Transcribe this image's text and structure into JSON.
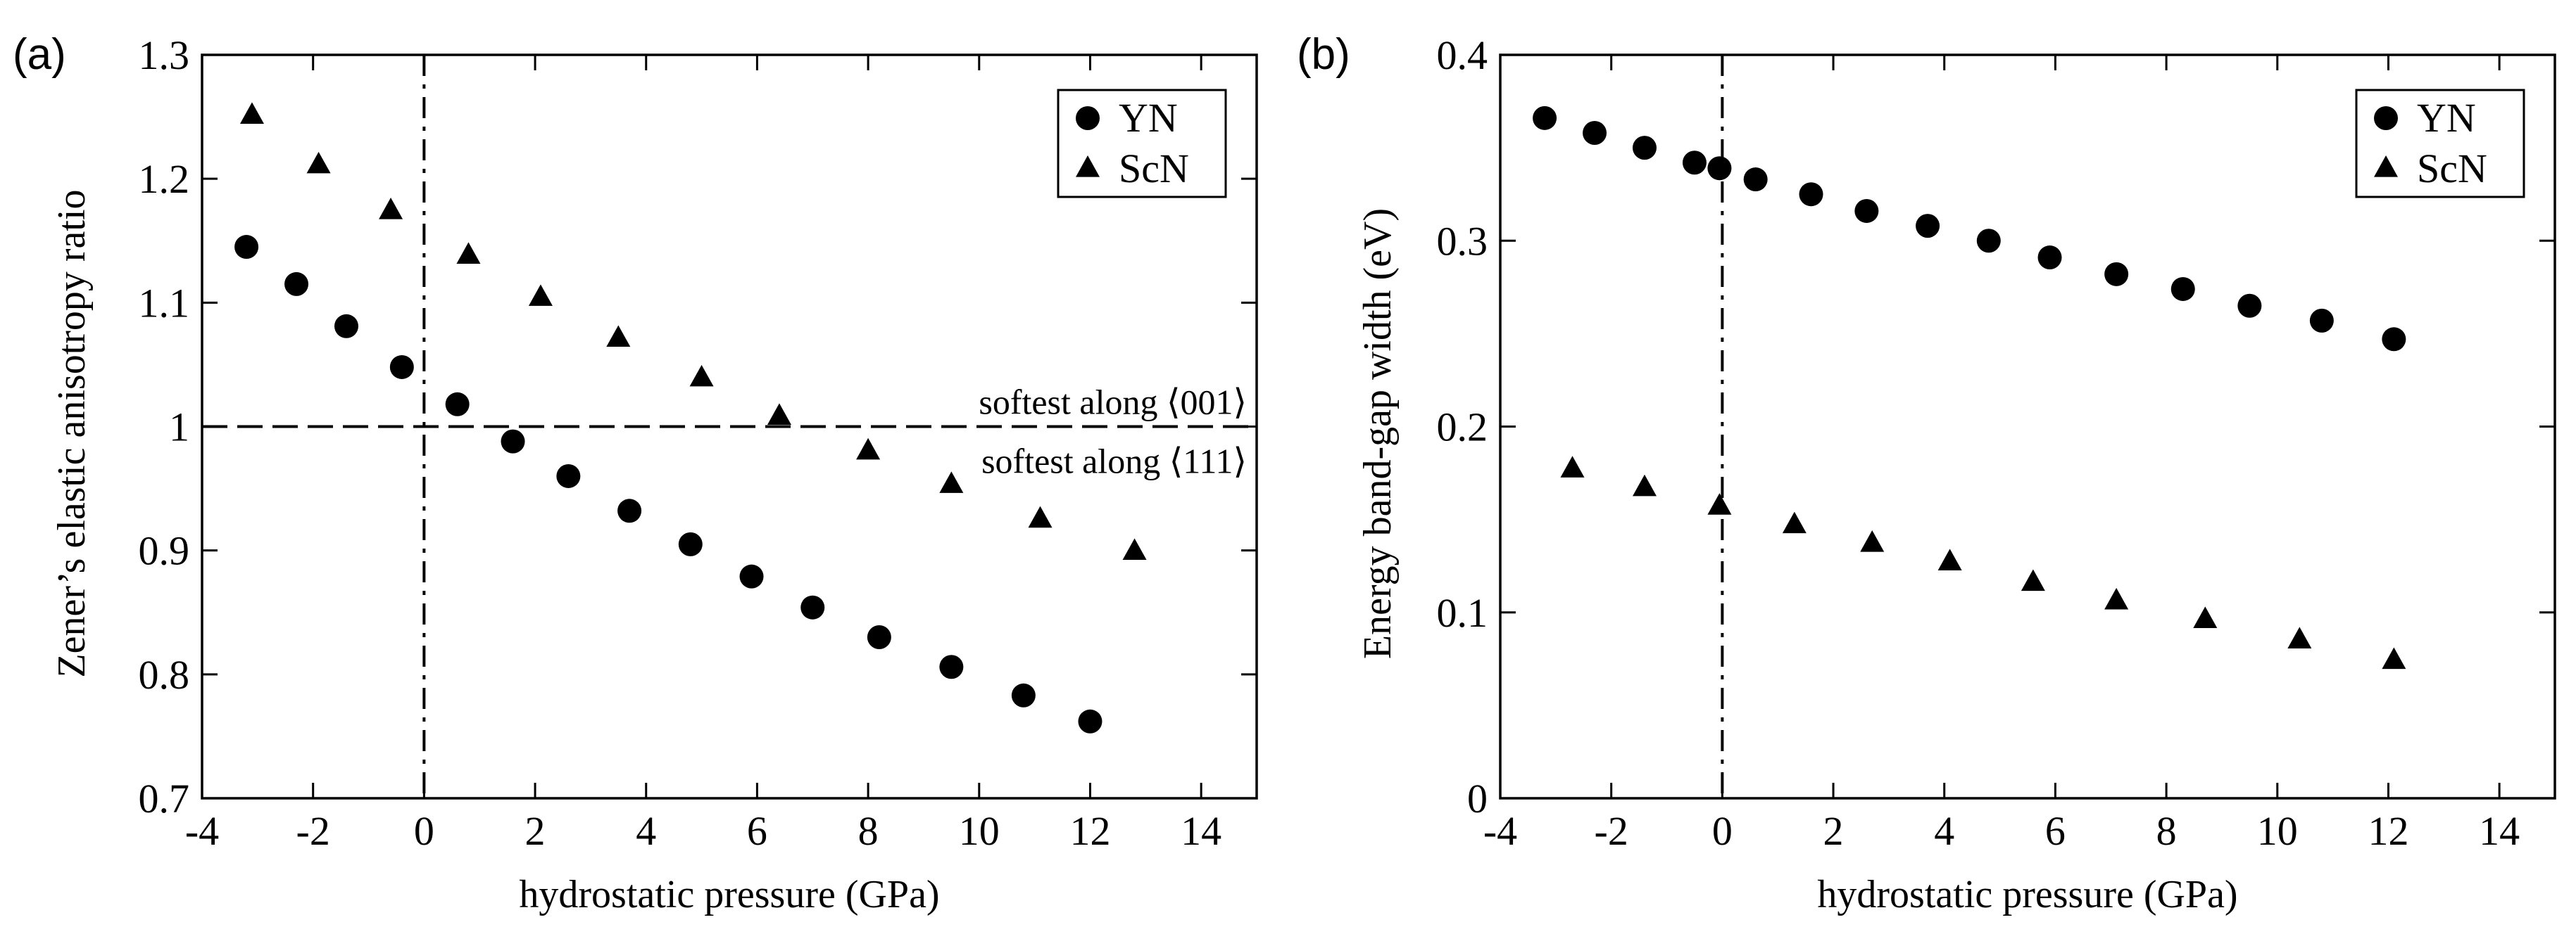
{
  "figure": {
    "panels": [
      "(a)",
      "(b)"
    ]
  },
  "chart_data": [
    {
      "panel": "(a)",
      "type": "scatter",
      "title": "",
      "xlabel": "hydrostatic pressure (GPa)",
      "ylabel": "Zener’s elastic anisotropy ratio",
      "xlim": [
        -4,
        15
      ],
      "ylim": [
        0.7,
        1.3
      ],
      "xticks": [
        -4,
        -2,
        0,
        2,
        4,
        6,
        8,
        10,
        12,
        14
      ],
      "xtick_labels": [
        "-4",
        "-2",
        "0",
        "2",
        "4",
        "6",
        "8",
        "10",
        "12",
        "14"
      ],
      "yticks": [
        0.7,
        0.8,
        0.9,
        1.0,
        1.1,
        1.2,
        1.3
      ],
      "ytick_labels": [
        "0.7",
        "0.8",
        "0.9",
        "1",
        "1.1",
        "1.2",
        "1.3"
      ],
      "grid": false,
      "legend_position": "top-right",
      "series": [
        {
          "name": "YN",
          "marker": "circle",
          "x": [
            -3.2,
            -2.3,
            -1.4,
            -0.4,
            0.6,
            1.6,
            2.6,
            3.7,
            4.8,
            5.9,
            7.0,
            8.2,
            9.5,
            10.8,
            12.0
          ],
          "y": [
            1.145,
            1.115,
            1.081,
            1.048,
            1.018,
            0.988,
            0.96,
            0.932,
            0.905,
            0.879,
            0.854,
            0.83,
            0.806,
            0.783,
            0.762
          ]
        },
        {
          "name": "ScN",
          "marker": "triangle",
          "x": [
            -3.1,
            -1.9,
            -0.6,
            0.8,
            2.1,
            3.5,
            5.0,
            6.4,
            8.0,
            9.5,
            11.1,
            12.8
          ],
          "y": [
            1.251,
            1.211,
            1.174,
            1.138,
            1.104,
            1.071,
            1.039,
            1.008,
            0.98,
            0.953,
            0.925,
            0.899
          ]
        }
      ],
      "reference_lines": {
        "horizontal_at": 1.0,
        "vertical_at": 0
      },
      "annotations": [
        "softest along ⟨001⟩",
        "softest along ⟨111⟩"
      ]
    },
    {
      "panel": "(b)",
      "type": "scatter",
      "title": "",
      "xlabel": "hydrostatic pressure (GPa)",
      "ylabel": "Energy band-gap width (eV)",
      "xlim": [
        -4,
        15
      ],
      "ylim": [
        0,
        0.4
      ],
      "xticks": [
        -4,
        -2,
        0,
        2,
        4,
        6,
        8,
        10,
        12,
        14
      ],
      "xtick_labels": [
        "-4",
        "-2",
        "0",
        "2",
        "4",
        "6",
        "8",
        "10",
        "12",
        "14"
      ],
      "yticks": [
        0,
        0.1,
        0.2,
        0.3,
        0.4
      ],
      "ytick_labels": [
        "0",
        "0.1",
        "0.2",
        "0.3",
        "0.4"
      ],
      "grid": false,
      "legend_position": "top-right",
      "series": [
        {
          "name": "YN",
          "marker": "circle",
          "x": [
            -3.2,
            -2.3,
            -1.4,
            -0.5,
            -0.05,
            0.6,
            1.6,
            2.6,
            3.7,
            4.8,
            5.9,
            7.1,
            8.3,
            9.5,
            10.8,
            12.1
          ],
          "y": [
            0.366,
            0.358,
            0.35,
            0.342,
            0.339,
            0.333,
            0.325,
            0.316,
            0.308,
            0.3,
            0.291,
            0.282,
            0.274,
            0.265,
            0.257,
            0.247
          ]
        },
        {
          "name": "ScN",
          "marker": "triangle",
          "x": [
            -2.7,
            -1.4,
            -0.05,
            1.3,
            2.7,
            4.1,
            5.6,
            7.1,
            8.7,
            10.4,
            12.1
          ],
          "y": [
            0.177,
            0.167,
            0.157,
            0.147,
            0.137,
            0.127,
            0.116,
            0.106,
            0.096,
            0.085,
            0.074
          ]
        }
      ],
      "reference_lines": {
        "vertical_at": 0
      },
      "annotations": []
    }
  ]
}
